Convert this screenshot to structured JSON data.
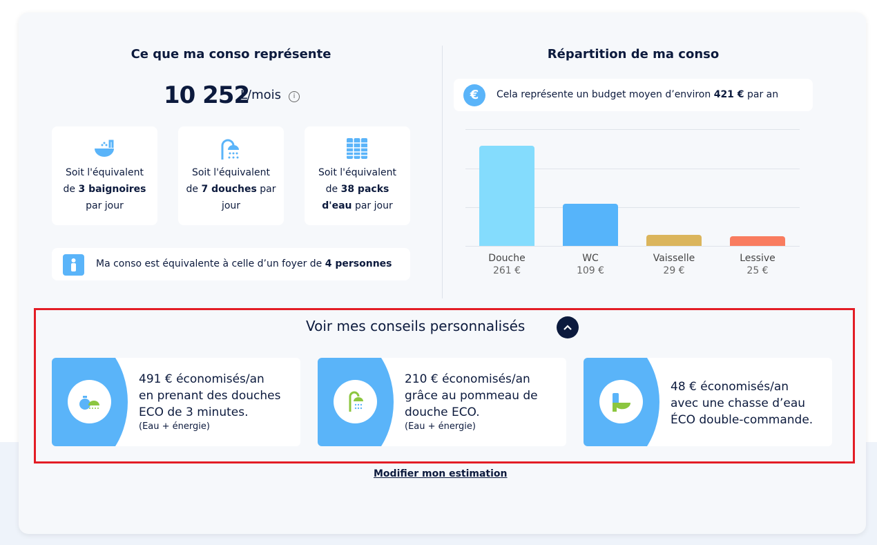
{
  "left": {
    "title": "Ce que ma conso représente",
    "value": "10 252",
    "unit": "L/mois",
    "equivalents": [
      {
        "icon": "bathtub-icon",
        "l1": "Soit l'équivalent",
        "pre": "de ",
        "bold": "3 baignoires",
        "post": "",
        "l3": "par jour"
      },
      {
        "icon": "shower-icon",
        "l1": "Soit l'équivalent",
        "pre": "de ",
        "bold": "7 douches",
        "post": " par",
        "l3": "jour"
      },
      {
        "icon": "water-packs-icon",
        "l1": "Soit l'équivalent",
        "pre": "de ",
        "bold": "38 packs",
        "post": "",
        "l3b": "d'eau",
        "l3": " par jour"
      }
    ],
    "household": {
      "text": "Ma conso est équivalente à celle d’un foyer de ",
      "bold": "4 personnes"
    }
  },
  "right": {
    "title": "Répartition de ma conso",
    "budget": {
      "pre": "Cela représente un budget moyen d’environ ",
      "bold": "421 €",
      "post": " par an"
    }
  },
  "chart_data": {
    "type": "bar",
    "categories": [
      "Douche",
      "WC",
      "Vaisselle",
      "Lessive"
    ],
    "values": [
      261,
      109,
      29,
      25
    ],
    "value_labels": [
      "261 €",
      "109 €",
      "29 €",
      "25 €"
    ],
    "colors": [
      "#84dcfd",
      "#56b4fa",
      "#dbb55c",
      "#f97c5f"
    ],
    "grid": true
  },
  "advice": {
    "title": "Voir mes conseils personnalisés",
    "expanded": true,
    "tips": [
      {
        "icon": "stopwatch-shower-icon",
        "lines": [
          "491 € économisés/an",
          "en prenant des douches",
          "ECO de 3 minutes."
        ],
        "sub": "(Eau + énergie)"
      },
      {
        "icon": "shower-head-icon",
        "lines": [
          "210 € économisés/an",
          "grâce au pommeau de",
          "douche ECO."
        ],
        "sub": "(Eau + énergie)"
      },
      {
        "icon": "toilet-icon",
        "lines": [
          "48 € économisés/an",
          "avec une chasse d’eau",
          "ÉCO double-commande."
        ],
        "sub": ""
      }
    ]
  },
  "modify_label": "Modifier mon estimation"
}
